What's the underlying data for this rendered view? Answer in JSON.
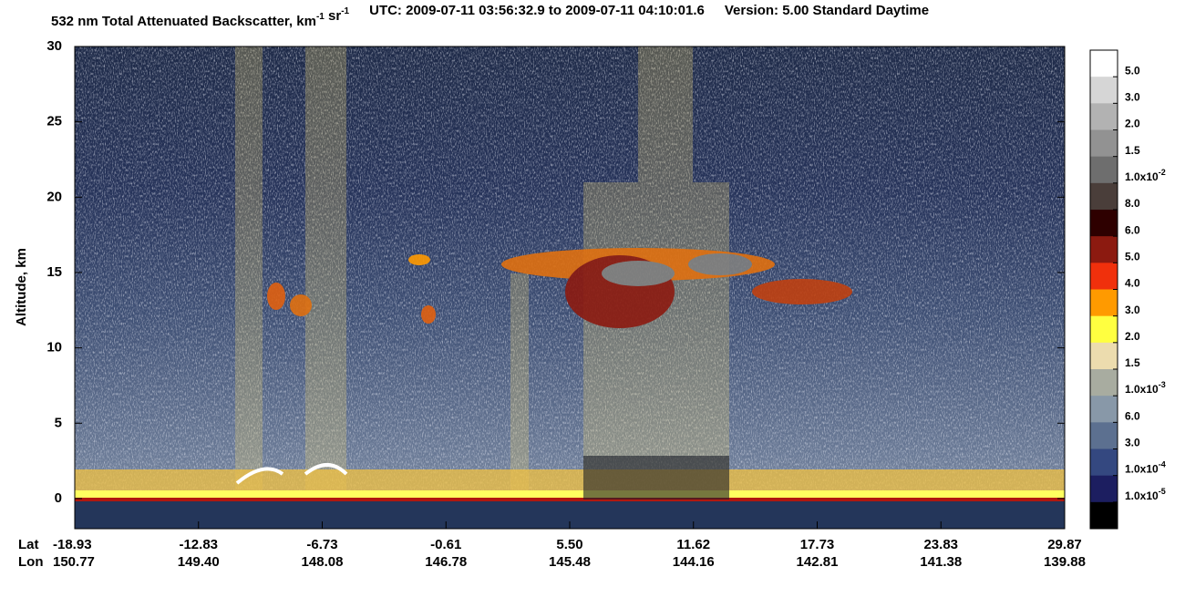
{
  "chart_data": {
    "type": "heatmap",
    "title": {
      "parts": [
        {
          "text": "532 nm Total Attenuated Backscatter, km"
        },
        {
          "sup": "-1"
        },
        {
          "text": " sr"
        },
        {
          "sup": "-1"
        },
        {
          "text": "UTC:  2009-07-11 03:56:32.9  to  2009-07-11 04:10:01.6"
        },
        {
          "text": "Version: 5.00  Standard  Daytime"
        }
      ]
    },
    "ylabel": "Altitude, km",
    "ylim": [
      -2,
      30
    ],
    "yticks": [
      0,
      5,
      10,
      15,
      20,
      25,
      30
    ],
    "x_rows": [
      {
        "name": "Lat",
        "labels": [
          "-18.93",
          "-12.83",
          "-6.73",
          "-0.61",
          "5.50",
          "11.62",
          "17.73",
          "23.83",
          "29.87"
        ]
      },
      {
        "name": "Lon",
        "labels": [
          "150.77",
          "149.40",
          "148.08",
          "146.78",
          "145.48",
          "144.16",
          "142.81",
          "141.38",
          "139.88"
        ]
      }
    ],
    "colorbar": {
      "colors": [
        "#ffffff",
        "#d6d6d6",
        "#b2b2b2",
        "#929292",
        "#6e6e6e",
        "#4a3e3a",
        "#2e0000",
        "#8c1a10",
        "#f0300c",
        "#ff9a00",
        "#ffff40",
        "#ecdcae",
        "#a8aca0",
        "#8898a8",
        "#5c7090",
        "#344880",
        "#1c1e60",
        "#000000"
      ],
      "labels": [
        "5.0",
        "3.0",
        "2.0",
        "1.5",
        {
          "text": "1.0x10",
          "sup": "-2"
        },
        "8.0",
        "6.0",
        "5.0",
        "4.0",
        "3.0",
        "2.0",
        "1.5",
        {
          "text": "1.0x10",
          "sup": "-3"
        },
        "6.0",
        "3.0",
        {
          "text": "1.0x10",
          "sup": "-4"
        },
        {
          "text": "1.0x10",
          "sup": "-5"
        }
      ]
    }
  }
}
